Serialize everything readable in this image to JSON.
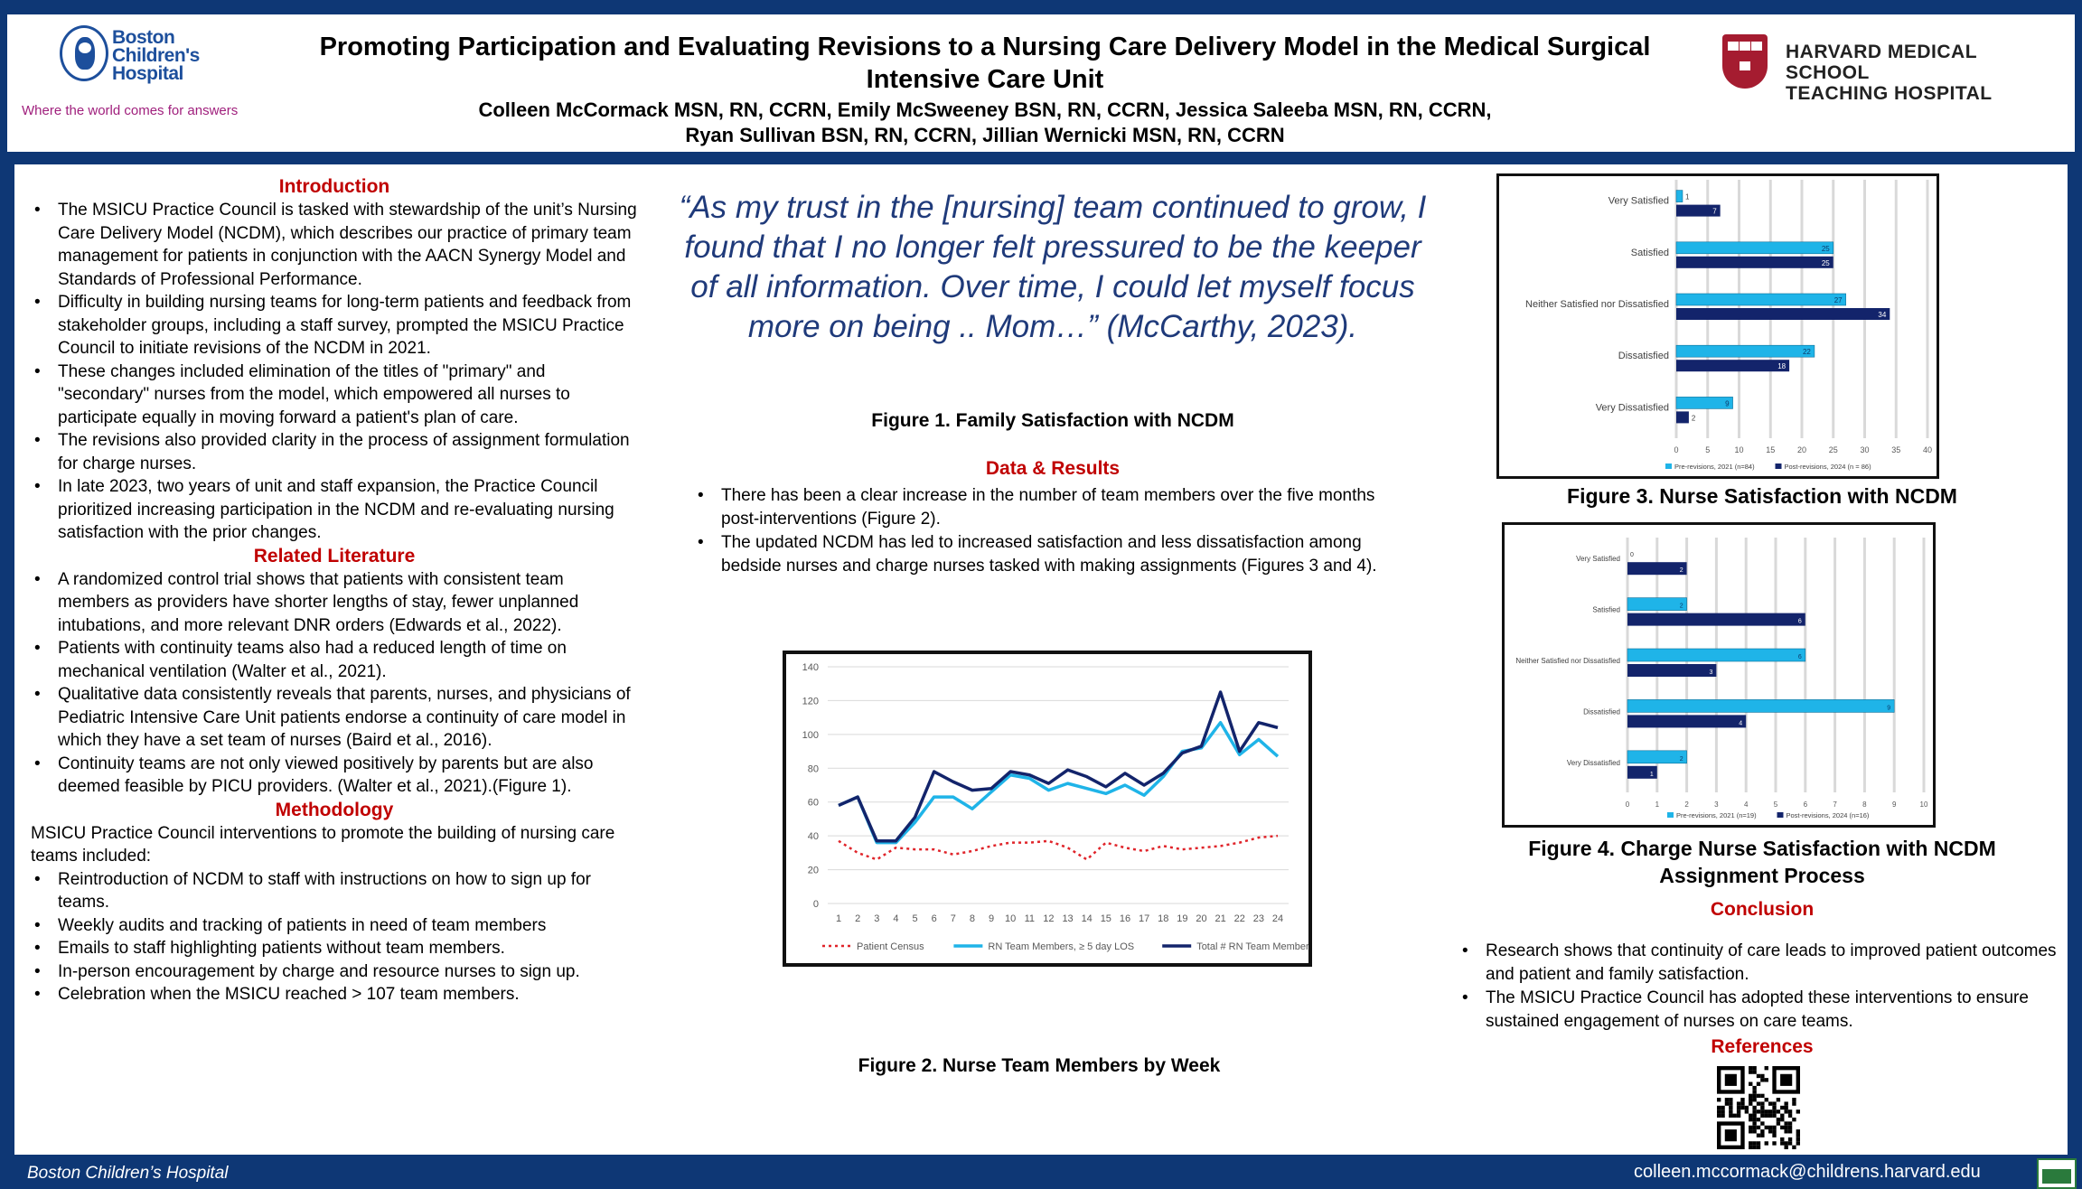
{
  "header": {
    "logo_line1": "Boston",
    "logo_line2": "Children's",
    "logo_line3": "Hospital",
    "tagline": "Where the world comes for answers",
    "title_line1": "Promoting Participation and Evaluating Revisions to a Nursing Care Delivery Model in the Medical Surgical",
    "title_line2": "Intensive Care Unit",
    "authors_line1": "Colleen McCormack MSN, RN, CCRN, Emily McSweeney BSN, RN, CCRN, Jessica Saleeba MSN, RN, CCRN,",
    "authors_line2": "Ryan Sullivan BSN, RN, CCRN, Jillian Wernicki MSN, RN, CCRN",
    "hms_line1": "HARVARD MEDICAL SCHOOL",
    "hms_line2": "TEACHING HOSPITAL"
  },
  "introduction": {
    "title": "Introduction",
    "bullets": [
      "The MSICU Practice Council is tasked with stewardship of the unit’s Nursing Care Delivery Model (NCDM), which describes our practice of primary team management for patients in conjunction with the AACN Synergy Model and Standards of Professional Performance.",
      "Difficulty in building nursing teams for long-term patients and feedback from stakeholder groups, including a staff survey, prompted the MSICU Practice Council to initiate revisions of the NCDM in 2021.",
      "These changes included elimination of the titles of \"primary\" and \"secondary\" nurses from the model, which empowered all nurses to participate equally in moving forward a patient's plan of care.",
      "The revisions also provided clarity in the process of assignment formulation for charge nurses.",
      "In late 2023, two years of unit and staff expansion, the Practice Council prioritized increasing participation in the NCDM and re-evaluating nursing satisfaction with the prior changes."
    ]
  },
  "literature": {
    "title": "Related Literature",
    "bullets": [
      "A randomized control trial shows that patients with consistent team members as providers have shorter lengths of stay, fewer unplanned intubations, and more relevant DNR orders (Edwards et al., 2022).",
      "Patients with continuity teams also had a reduced length of time on mechanical ventilation (Walter et al., 2021).",
      "Qualitative data consistently reveals that parents, nurses, and physicians of Pediatric Intensive Care Unit patients endorse a continuity of care model in which they have a set team of nurses (Baird et al., 2016).",
      "Continuity teams are not only viewed positively by parents but are also deemed feasible by PICU providers. (Walter et al., 2021).(Figure 1)."
    ]
  },
  "methodology": {
    "title": "Methodology",
    "intro": "MSICU Practice Council interventions to promote the building of nursing care teams included:",
    "bullets": [
      "Reintroduction of NCDM to staff with instructions on how to sign up for teams.",
      "Weekly audits and tracking of patients in need of team members",
      "Emails to staff highlighting patients without team members.",
      "In-person encouragement by charge and resource nurses to sign up.",
      "Celebration when the MSICU reached > 107 team members."
    ]
  },
  "quote": "“As my trust in the [nursing] team continued to grow, I found that I no longer felt pressured to be the keeper of all information. Over time, I could let myself focus more on being .. Mom…” (McCarthy, 2023).",
  "fig1_caption": "Figure 1.  Family Satisfaction with NCDM",
  "results": {
    "title": "Data & Results",
    "bullets": [
      "There has been a clear increase in the number of team members over the five months post-interventions (Figure 2).",
      "The updated NCDM has led to increased satisfaction and less dissatisfaction among bedside nurses and charge nurses tasked with making assignments (Figures 3 and 4)."
    ]
  },
  "fig2_caption": "Figure 2. Nurse Team Members by Week",
  "fig3_caption": "Figure 3. Nurse Satisfaction with NCDM",
  "fig4_caption": "Figure 4. Charge Nurse Satisfaction with NCDM Assignment Process",
  "conclusion": {
    "title": "Conclusion",
    "bullets": [
      "Research shows that continuity of care leads to improved patient outcomes and patient and family satisfaction.",
      "The MSICU Practice Council has adopted these interventions to ensure sustained engagement of nurses on care teams."
    ]
  },
  "references_title": "References",
  "footer": {
    "left": "Boston Children’s Hospital",
    "email": "colleen.mccormack@childrens.harvard.edu"
  },
  "colors": {
    "navy": "#0e3775",
    "red_heading": "#c00000",
    "quote_blue": "#1f3a7a",
    "series_light": "#1fb4e8",
    "series_dark": "#13246b",
    "census_red": "#e0242a"
  },
  "chart_data": [
    {
      "id": "fig2",
      "type": "line",
      "x": [
        1,
        2,
        3,
        4,
        5,
        6,
        7,
        8,
        9,
        10,
        11,
        12,
        13,
        14,
        15,
        16,
        17,
        18,
        19,
        20,
        21,
        22,
        23,
        24
      ],
      "ylim": [
        0,
        140
      ],
      "yticks": [
        0,
        20,
        40,
        60,
        80,
        100,
        120,
        140
      ],
      "grid": true,
      "legend_placement": "bottom",
      "series": [
        {
          "name": "Patient Census",
          "style": "dotted",
          "color": "#e0242a",
          "values": [
            37,
            30,
            26,
            33,
            32,
            32,
            29,
            31,
            34,
            36,
            36,
            37,
            33,
            26,
            36,
            33,
            31,
            34,
            32,
            33,
            34,
            36,
            39,
            40
          ]
        },
        {
          "name": "RN Team Members, ≥ 5 day LOS",
          "style": "solid",
          "color": "#1fb4e8",
          "values": [
            58,
            63,
            36,
            36,
            48,
            63,
            63,
            56,
            66,
            76,
            74,
            67,
            71,
            68,
            65,
            70,
            64,
            75,
            90,
            92,
            107,
            88,
            97,
            87
          ]
        },
        {
          "name": "Total # RN Team Members",
          "style": "solid",
          "color": "#13246b",
          "values": [
            58,
            63,
            37,
            37,
            51,
            78,
            72,
            67,
            68,
            78,
            76,
            71,
            79,
            75,
            69,
            77,
            70,
            77,
            89,
            93,
            125,
            90,
            107,
            104
          ]
        }
      ]
    },
    {
      "id": "fig3",
      "type": "bar",
      "orientation": "horizontal",
      "categories": [
        "Very Satisfied",
        "Satisfied",
        "Neither Satisfied nor Dissatisfied",
        "Dissatisfied",
        "Very Dissatisfied"
      ],
      "xlim": [
        0,
        40
      ],
      "xticks": [
        0,
        5,
        10,
        15,
        20,
        25,
        30,
        35,
        40
      ],
      "legend_placement": "bottom",
      "series": [
        {
          "name": "Pre-revisions, 2021 (n=84)",
          "color": "#1fb4e8",
          "values": [
            1,
            25,
            27,
            22,
            9
          ]
        },
        {
          "name": "Post-revisions, 2024 (n = 86)",
          "color": "#13246b",
          "values": [
            7,
            25,
            34,
            18,
            2
          ]
        }
      ]
    },
    {
      "id": "fig4",
      "type": "bar",
      "orientation": "horizontal",
      "categories": [
        "Very Satisfied",
        "Satisfied",
        "Neither Satisfied nor Dissatisfied",
        "Dissatisfied",
        "Very Dissatisfied"
      ],
      "xlim": [
        0,
        10
      ],
      "xticks": [
        0,
        1,
        2,
        3,
        4,
        5,
        6,
        7,
        8,
        9,
        10
      ],
      "legend_placement": "bottom",
      "series": [
        {
          "name": "Pre-revisions, 2021 (n=19)",
          "color": "#1fb4e8",
          "values": [
            0,
            2,
            6,
            9,
            2
          ]
        },
        {
          "name": "Post-revisions, 2024 (n=16)",
          "color": "#13246b",
          "values": [
            2,
            6,
            3,
            4,
            1
          ]
        }
      ]
    }
  ]
}
